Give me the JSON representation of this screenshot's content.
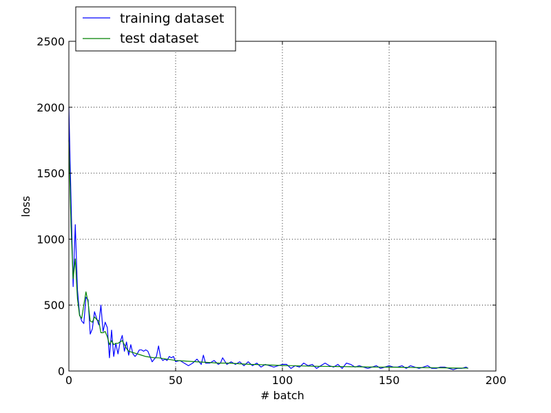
{
  "chart_data": {
    "type": "line",
    "title": "",
    "xlabel": "# batch",
    "ylabel": "loss",
    "xlim": [
      0,
      200
    ],
    "ylim": [
      0,
      2500
    ],
    "xticks": [
      0,
      50,
      100,
      150,
      200
    ],
    "yticks": [
      0,
      500,
      1000,
      1500,
      2000,
      2500
    ],
    "grid": true,
    "legend_position": "top-left (above axes)",
    "series": [
      {
        "name": "training dataset",
        "color": "#0000ff",
        "x": [
          0,
          1,
          2,
          3,
          4,
          5,
          6,
          7,
          8,
          9,
          10,
          11,
          12,
          13,
          14,
          15,
          16,
          17,
          18,
          19,
          20,
          21,
          22,
          23,
          24,
          25,
          26,
          27,
          28,
          29,
          30,
          31,
          32,
          33,
          34,
          35,
          36,
          37,
          38,
          39,
          40,
          41,
          42,
          43,
          44,
          45,
          46,
          47,
          48,
          49,
          50,
          52,
          54,
          56,
          58,
          60,
          62,
          63,
          64,
          66,
          68,
          70,
          71,
          72,
          74,
          76,
          78,
          80,
          82,
          84,
          86,
          88,
          90,
          92,
          94,
          96,
          98,
          100,
          102,
          104,
          106,
          108,
          110,
          112,
          114,
          116,
          118,
          120,
          122,
          124,
          126,
          128,
          130,
          132,
          134,
          136,
          138,
          140,
          142,
          144,
          146,
          148,
          150,
          152,
          154,
          156,
          158,
          160,
          162,
          164,
          166,
          168,
          170,
          172,
          174,
          176,
          178,
          180,
          182,
          184,
          186,
          187
        ],
        "values": [
          2000,
          1300,
          640,
          1110,
          620,
          430,
          380,
          360,
          560,
          540,
          280,
          320,
          450,
          400,
          350,
          500,
          300,
          370,
          330,
          100,
          310,
          110,
          210,
          130,
          220,
          270,
          150,
          220,
          120,
          200,
          130,
          110,
          130,
          160,
          160,
          150,
          160,
          150,
          110,
          70,
          90,
          110,
          190,
          100,
          80,
          90,
          80,
          110,
          100,
          110,
          70,
          80,
          60,
          40,
          60,
          90,
          50,
          120,
          60,
          60,
          80,
          50,
          60,
          100,
          50,
          70,
          50,
          70,
          40,
          70,
          40,
          60,
          30,
          50,
          40,
          30,
          40,
          50,
          50,
          20,
          40,
          30,
          60,
          40,
          50,
          20,
          40,
          60,
          40,
          30,
          50,
          20,
          60,
          50,
          30,
          40,
          30,
          20,
          30,
          40,
          20,
          30,
          40,
          30,
          30,
          40,
          20,
          40,
          30,
          20,
          30,
          40,
          20,
          20,
          30,
          30,
          20,
          10,
          20,
          20,
          30,
          20
        ]
      },
      {
        "name": "test dataset",
        "color": "#008000",
        "x": [
          0,
          1,
          2,
          3,
          4,
          5,
          6,
          7,
          8,
          9,
          10,
          11,
          12,
          13,
          14,
          15,
          16,
          17,
          18,
          19,
          20,
          21,
          22,
          23,
          24,
          25,
          26,
          27,
          28,
          29,
          30,
          32,
          34,
          36,
          38,
          40,
          42,
          44,
          46,
          48,
          50,
          55,
          60,
          65,
          70,
          75,
          80,
          85,
          90,
          95,
          100,
          105,
          110,
          115,
          120,
          125,
          130,
          135,
          140,
          145,
          150,
          155,
          160,
          165,
          170,
          175,
          180,
          185,
          187
        ],
        "values": [
          1750,
          1100,
          700,
          850,
          550,
          420,
          400,
          500,
          600,
          520,
          380,
          370,
          410,
          390,
          380,
          290,
          290,
          300,
          260,
          200,
          230,
          200,
          210,
          210,
          220,
          230,
          200,
          170,
          150,
          145,
          140,
          130,
          120,
          110,
          105,
          100,
          100,
          95,
          90,
          85,
          80,
          75,
          70,
          65,
          60,
          60,
          55,
          50,
          48,
          45,
          42,
          40,
          38,
          36,
          35,
          34,
          33,
          32,
          31,
          30,
          29,
          28,
          27,
          26,
          25,
          24,
          23,
          22,
          22
        ]
      }
    ]
  }
}
